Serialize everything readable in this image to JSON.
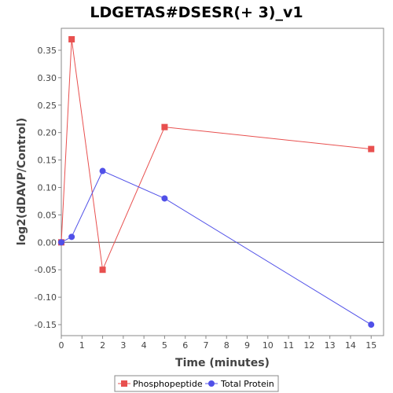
{
  "chart_data": {
    "type": "line",
    "title": "LDGETAS#DSESR(+ 3)_v1",
    "xlabel": "Time (minutes)",
    "ylabel": "log2(dDAVP/Control)",
    "xlim": [
      0,
      15.6
    ],
    "ylim": [
      -0.17,
      0.39
    ],
    "xticks": [
      0,
      1,
      2,
      3,
      4,
      5,
      6,
      7,
      8,
      9,
      10,
      11,
      12,
      13,
      14,
      15
    ],
    "yticks": [
      -0.15,
      -0.1,
      -0.05,
      0.0,
      0.05,
      0.1,
      0.15,
      0.2,
      0.25,
      0.3,
      0.35
    ],
    "ytick_labels": [
      "-0.15",
      "-0.10",
      "-0.05",
      "0.00",
      "0.05",
      "0.10",
      "0.15",
      "0.20",
      "0.25",
      "0.30",
      "0.35"
    ],
    "zero_line": true,
    "grid": false,
    "legend_position": "bottom-center",
    "series": [
      {
        "name": "Phosphopeptide",
        "color": "#e8504f",
        "marker": "square",
        "x": [
          0,
          0.5,
          2,
          5,
          15
        ],
        "y": [
          0.0,
          0.37,
          -0.05,
          0.21,
          0.17
        ]
      },
      {
        "name": "Total Protein",
        "color": "#5050e8",
        "marker": "circle",
        "x": [
          0,
          0.5,
          2,
          5,
          15
        ],
        "y": [
          0.0,
          0.01,
          0.13,
          0.08,
          -0.15
        ]
      }
    ]
  }
}
